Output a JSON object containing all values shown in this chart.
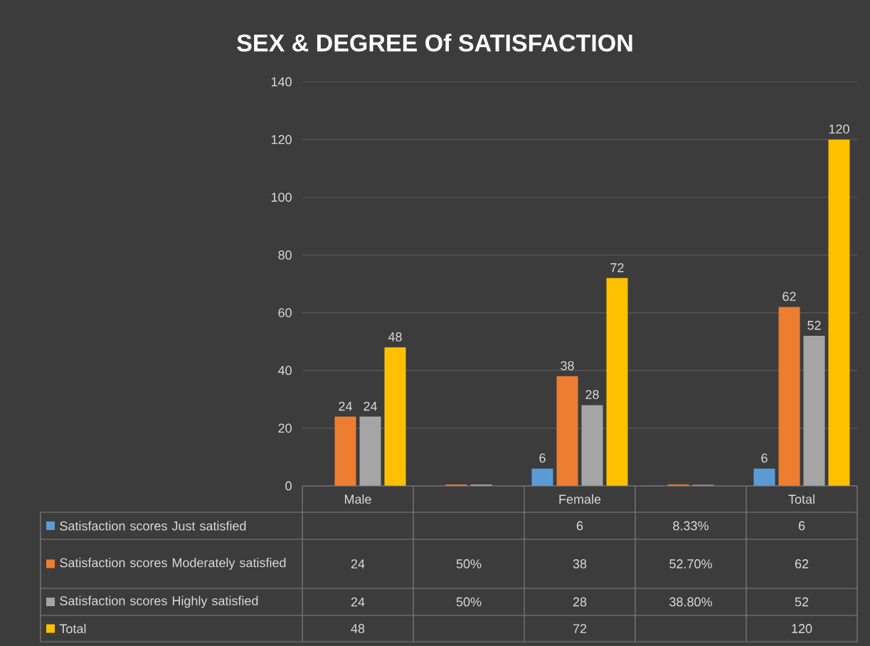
{
  "chart_data": {
    "type": "bar",
    "title": "SEX & DEGREE Of SATISFACTION",
    "categories": [
      "Male",
      null,
      "Female",
      null,
      "Total"
    ],
    "ylim": [
      0,
      140
    ],
    "yticks": [
      0,
      20,
      40,
      60,
      80,
      100,
      120,
      140
    ],
    "grid": "y",
    "legend": "bottom",
    "series": [
      {
        "name": "Satisfaction scores Just satisfied",
        "color": "#5b9bd5",
        "values": [
          null,
          null,
          6,
          0.0833,
          6
        ],
        "value_labels": [
          null,
          null,
          "6",
          "8.33%",
          "6"
        ]
      },
      {
        "name": "Satisfaction scores Moderately satisfied",
        "color": "#ed7d31",
        "values": [
          24,
          0.5,
          38,
          0.527,
          62
        ],
        "value_labels": [
          "24",
          "50%",
          "38",
          "52.70%",
          "62"
        ]
      },
      {
        "name": "Satisfaction scores Highly satisfied",
        "color": "#a5a5a5",
        "values": [
          24,
          0.5,
          28,
          0.388,
          52
        ],
        "value_labels": [
          "24",
          "50%",
          "28",
          "38.80%",
          "52"
        ]
      },
      {
        "name": "Total",
        "color": "#ffc000",
        "values": [
          48,
          null,
          72,
          null,
          120
        ],
        "value_labels": [
          "48",
          null,
          "72",
          null,
          "120"
        ]
      }
    ]
  }
}
